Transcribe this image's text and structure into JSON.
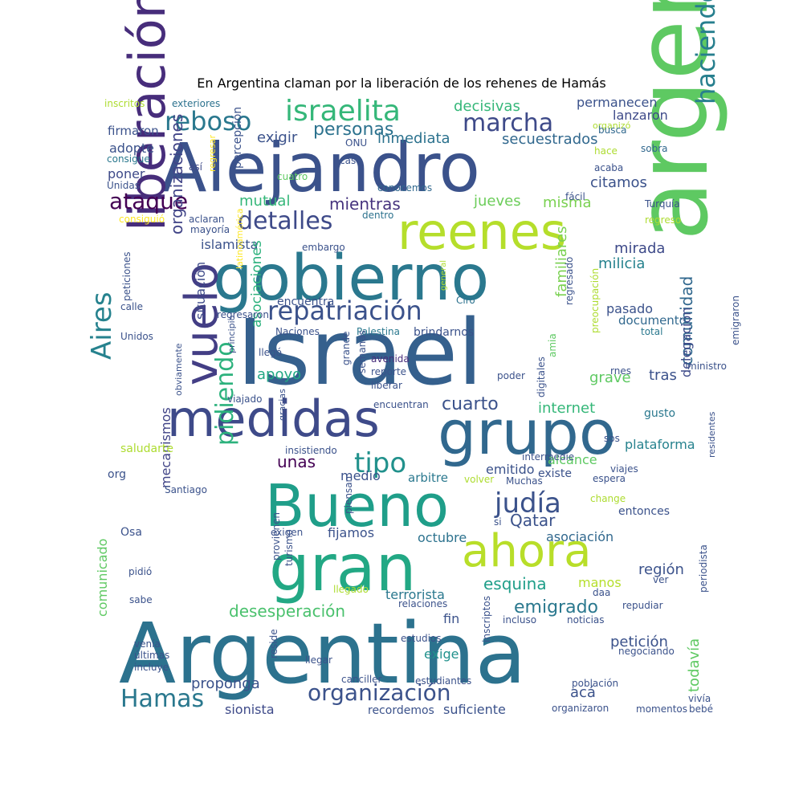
{
  "title": "En Argentina claman por la liberación de los rehenes de Hamás",
  "palette": [
    "#440154",
    "#472d7b",
    "#3b528b",
    "#2c728e",
    "#21918c",
    "#28ae80",
    "#5ec962",
    "#addc30",
    "#fde725"
  ],
  "words": [
    {
      "text": "Israel",
      "color": "#35608d"
    },
    {
      "text": "argentino",
      "color": "#5ec962"
    },
    {
      "text": "Argentina",
      "color": "#2c728e"
    },
    {
      "text": "Alejandro",
      "color": "#3b528b"
    },
    {
      "text": "gobierno",
      "color": "#2a788e"
    },
    {
      "text": "liberación",
      "color": "#472d7b"
    },
    {
      "text": "medidas",
      "color": "#3e4a89"
    },
    {
      "text": "grupo",
      "color": "#31688e"
    },
    {
      "text": "Bueno",
      "color": "#1f9e89"
    },
    {
      "text": "gran",
      "color": "#22a884"
    },
    {
      "text": "reenes",
      "color": "#b5de2b"
    },
    {
      "text": "vuelo",
      "color": "#433e85"
    },
    {
      "text": "ahora",
      "color": "#b8de29"
    },
    {
      "text": "israelita",
      "color": "#35b779"
    },
    {
      "text": "repatriación",
      "color": "#3b528b"
    },
    {
      "text": "reboso",
      "color": "#2a788e"
    },
    {
      "text": "marcha",
      "color": "#3e4a89"
    },
    {
      "text": "haciendo",
      "color": "#277f8e"
    },
    {
      "text": "detalles",
      "color": "#3e4a89"
    },
    {
      "text": "ataque",
      "color": "#440154"
    },
    {
      "text": "Aires",
      "color": "#26828e"
    },
    {
      "text": "pidiendo",
      "color": "#2db27d"
    },
    {
      "text": "organización",
      "color": "#3b528b"
    },
    {
      "text": "judía",
      "color": "#3b528b"
    },
    {
      "text": "tipo",
      "color": "#21918c"
    },
    {
      "text": "Hamas",
      "color": "#2a788e"
    },
    {
      "text": "personas",
      "color": "#2c728e"
    },
    {
      "text": "organizaciones",
      "color": "#414487"
    },
    {
      "text": "desesperación",
      "color": "#4ac16d"
    },
    {
      "text": "comunidad",
      "color": "#31688e"
    },
    {
      "text": "cuarto",
      "color": "#3b528b"
    },
    {
      "text": "emigrado",
      "color": "#2a788e"
    },
    {
      "text": "decisivas",
      "color": "#35b779"
    },
    {
      "text": "mientras",
      "color": "#46337e"
    },
    {
      "text": "Qatar",
      "color": "#3b528b"
    },
    {
      "text": "esquina",
      "color": "#1f9e89"
    },
    {
      "text": "exigir",
      "color": "#3b528b"
    },
    {
      "text": "inmediata",
      "color": "#2c728e"
    },
    {
      "text": "secuestrados",
      "color": "#31688e"
    },
    {
      "text": "misma",
      "color": "#7ad151"
    },
    {
      "text": "citamos",
      "color": "#3b528b"
    },
    {
      "text": "jueves",
      "color": "#6ccd5a"
    },
    {
      "text": "mutual",
      "color": "#35b779"
    },
    {
      "text": "islamista",
      "color": "#3b528b"
    },
    {
      "text": "mirada",
      "color": "#3e4a89"
    },
    {
      "text": "milicia",
      "color": "#26828e"
    },
    {
      "text": "asociaciones",
      "color": "#2db27d"
    },
    {
      "text": "mecanismos",
      "color": "#414487"
    },
    {
      "text": "familiares",
      "color": "#7ad151"
    },
    {
      "text": "delegación",
      "color": "#3e4a89"
    },
    {
      "text": "situación",
      "color": "#3e4a89"
    },
    {
      "text": "apoyo",
      "color": "#22a884"
    },
    {
      "text": "pasado",
      "color": "#3b528b"
    },
    {
      "text": "documento",
      "color": "#31688e"
    },
    {
      "text": "grave",
      "color": "#5ec962"
    },
    {
      "text": "tras",
      "color": "#3b528b"
    },
    {
      "text": "internet",
      "color": "#35b779"
    },
    {
      "text": "unas",
      "color": "#440154"
    },
    {
      "text": "emitido",
      "color": "#3b528b"
    },
    {
      "text": "alcance",
      "color": "#5ec962"
    },
    {
      "text": "medio",
      "color": "#3b528b"
    },
    {
      "text": "arbitre",
      "color": "#2a788e"
    },
    {
      "text": "fijamos",
      "color": "#3b528b"
    },
    {
      "text": "octubre",
      "color": "#2c728e"
    },
    {
      "text": "asociación",
      "color": "#31688e"
    },
    {
      "text": "región",
      "color": "#3b528b"
    },
    {
      "text": "terrorista",
      "color": "#2a788e"
    },
    {
      "text": "fin",
      "color": "#3b528b"
    },
    {
      "text": "exige",
      "color": "#21918c"
    },
    {
      "text": "acá",
      "color": "#3b528b"
    },
    {
      "text": "petición",
      "color": "#3b528b"
    },
    {
      "text": "todavía",
      "color": "#5ec962"
    },
    {
      "text": "proponga",
      "color": "#3b528b"
    },
    {
      "text": "sionista",
      "color": "#3e4a89"
    },
    {
      "text": "recordemos",
      "color": "#3b528b"
    },
    {
      "text": "suficiente",
      "color": "#3b528b"
    },
    {
      "text": "permanecen",
      "color": "#3b528b"
    },
    {
      "text": "lanzaron",
      "color": "#3e4a89"
    },
    {
      "text": "adopte",
      "color": "#3b528b"
    },
    {
      "text": "poner",
      "color": "#3e4a89"
    },
    {
      "text": "firmaron",
      "color": "#3b528b"
    },
    {
      "text": "percepción",
      "color": "#3b528b"
    },
    {
      "text": "manos",
      "color": "#b5de2b"
    },
    {
      "text": "comunicado",
      "color": "#5ec962"
    },
    {
      "text": "plataforma",
      "color": "#26828e"
    },
    {
      "text": "encuentra",
      "color": "#3b528b"
    },
    {
      "text": "entonces",
      "color": "#3b528b"
    },
    {
      "text": "existe",
      "color": "#3b528b"
    },
    {
      "text": "brindarnos",
      "color": "#3b528b"
    },
    {
      "text": "gusto",
      "color": "#2a788e"
    },
    {
      "text": "inscritos",
      "color": "#addc30"
    },
    {
      "text": "exteriores",
      "color": "#2c728e"
    },
    {
      "text": "organizó",
      "color": "#addc30"
    },
    {
      "text": "busca",
      "color": "#31688e"
    },
    {
      "text": "consigue",
      "color": "#2a788e"
    },
    {
      "text": "Unidas",
      "color": "#3b528b"
    },
    {
      "text": "regresar",
      "color": "#fde725"
    },
    {
      "text": "así",
      "color": "#3e4a89"
    },
    {
      "text": "caso",
      "color": "#3b528b"
    },
    {
      "text": "cuatro",
      "color": "#5ec962"
    },
    {
      "text": "ONU",
      "color": "#3b528b"
    },
    {
      "text": "hace",
      "color": "#addc30"
    },
    {
      "text": "sobra",
      "color": "#31688e"
    },
    {
      "text": "acaba",
      "color": "#3b528b"
    },
    {
      "text": "conocemos",
      "color": "#31688e"
    },
    {
      "text": "fácil",
      "color": "#3b528b"
    },
    {
      "text": "Turquía",
      "color": "#3b528b"
    },
    {
      "text": "regreso",
      "color": "#addc30"
    },
    {
      "text": "consiguió",
      "color": "#fde725"
    },
    {
      "text": "aclaran",
      "color": "#3b528b"
    },
    {
      "text": "mayoría",
      "color": "#3b528b"
    },
    {
      "text": "dentro",
      "color": "#2c728e"
    },
    {
      "text": "embargo",
      "color": "#3b528b"
    },
    {
      "text": "peticiones",
      "color": "#3b528b"
    },
    {
      "text": "latinoamérica",
      "color": "#fde725"
    },
    {
      "text": "general",
      "color": "#addc30"
    },
    {
      "text": "Ciro",
      "color": "#2c728e"
    },
    {
      "text": "regresado",
      "color": "#3b528b"
    },
    {
      "text": "preocupación",
      "color": "#addc30"
    },
    {
      "text": "emigraron",
      "color": "#3b528b"
    },
    {
      "text": "calle",
      "color": "#3b528b"
    },
    {
      "text": "regresaron",
      "color": "#3b528b"
    },
    {
      "text": "Unidos",
      "color": "#3b528b"
    },
    {
      "text": "Naciones",
      "color": "#3b528b"
    },
    {
      "text": "Palestina",
      "color": "#2a788e"
    },
    {
      "text": "total",
      "color": "#2a788e"
    },
    {
      "text": "principio",
      "color": "#3b528b"
    },
    {
      "text": "llegó",
      "color": "#3b528b"
    },
    {
      "text": "grande",
      "color": "#3b528b"
    },
    {
      "text": "amia",
      "color": "#5ec962"
    },
    {
      "text": "avenida",
      "color": "#472d7b"
    },
    {
      "text": "obviamente",
      "color": "#3b528b"
    },
    {
      "text": "gracias",
      "color": "#3b528b"
    },
    {
      "text": "semanas",
      "color": "#3b528b"
    },
    {
      "text": "reporte",
      "color": "#3b528b"
    },
    {
      "text": "liberar",
      "color": "#3b528b"
    },
    {
      "text": "digitales",
      "color": "#3b528b"
    },
    {
      "text": "poder",
      "color": "#3b528b"
    },
    {
      "text": "rnes",
      "color": "#3b528b"
    },
    {
      "text": "ministro",
      "color": "#3b528b"
    },
    {
      "text": "viajado",
      "color": "#3b528b"
    },
    {
      "text": "encuentran",
      "color": "#3b528b"
    },
    {
      "text": "sos",
      "color": "#3b528b"
    },
    {
      "text": "saludarte",
      "color": "#addc30"
    },
    {
      "text": "insistiendo",
      "color": "#3b528b"
    },
    {
      "text": "intermedie",
      "color": "#3b528b"
    },
    {
      "text": "viajes",
      "color": "#3b528b"
    },
    {
      "text": "espera",
      "color": "#3b528b"
    },
    {
      "text": "Muchas",
      "color": "#3b528b"
    },
    {
      "text": "volver",
      "color": "#addc30"
    },
    {
      "text": "org",
      "color": "#3b528b"
    },
    {
      "text": "Santiago",
      "color": "#3b528b"
    },
    {
      "text": "piensan",
      "color": "#3b528b"
    },
    {
      "text": "si",
      "color": "#3b528b"
    },
    {
      "text": "change",
      "color": "#addc30"
    },
    {
      "text": "residentes",
      "color": "#3b528b"
    },
    {
      "text": "Osa",
      "color": "#3b528b"
    },
    {
      "text": "exigen",
      "color": "#3b528b"
    },
    {
      "text": "provienen",
      "color": "#3b528b"
    },
    {
      "text": "turismo",
      "color": "#3b528b"
    },
    {
      "text": "pidió",
      "color": "#3b528b"
    },
    {
      "text": "llegado",
      "color": "#addc30"
    },
    {
      "text": "ver",
      "color": "#3b528b"
    },
    {
      "text": "sabe",
      "color": "#3b528b"
    },
    {
      "text": "relaciones",
      "color": "#3b528b"
    },
    {
      "text": "daa",
      "color": "#3b528b"
    },
    {
      "text": "repudiar",
      "color": "#3b528b"
    },
    {
      "text": "periodista",
      "color": "#3b528b"
    },
    {
      "text": "incluso",
      "color": "#3b528b"
    },
    {
      "text": "noticias",
      "color": "#3b528b"
    },
    {
      "text": "inscriptos",
      "color": "#3b528b"
    },
    {
      "text": "venía",
      "color": "#3b528b"
    },
    {
      "text": "últimas",
      "color": "#3b528b"
    },
    {
      "text": "incluye",
      "color": "#3b528b"
    },
    {
      "text": "estudios",
      "color": "#3b528b"
    },
    {
      "text": "negociando",
      "color": "#3b528b"
    },
    {
      "text": "reside",
      "color": "#3b528b"
    },
    {
      "text": "llegar",
      "color": "#3b528b"
    },
    {
      "text": "canciller",
      "color": "#3b528b"
    },
    {
      "text": "estudiantes",
      "color": "#3b528b"
    },
    {
      "text": "población",
      "color": "#3b528b"
    },
    {
      "text": "vivía",
      "color": "#3b528b"
    },
    {
      "text": "organizaron",
      "color": "#3b528b"
    },
    {
      "text": "momentos",
      "color": "#3b528b"
    },
    {
      "text": "bebé",
      "color": "#3b528b"
    }
  ]
}
